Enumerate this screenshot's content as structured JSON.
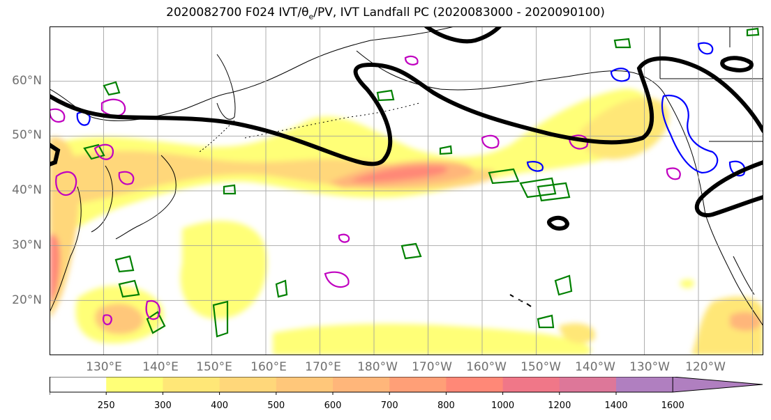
{
  "title": {
    "prefix": "2020082700 F024 IVT/",
    "theta": "θ",
    "sub": "e",
    "suffix": "/PV, IVT Landfall PC (2020083000 - 2020090100)"
  },
  "map": {
    "projection": "equirectangular",
    "lon_range_east": [
      120,
      252
    ],
    "lat_range": [
      10,
      70
    ],
    "lat_labels": [
      "60°N",
      "50°N",
      "40°N",
      "30°N",
      "20°N"
    ],
    "lon_labels": [
      "130°E",
      "140°E",
      "150°E",
      "160°E",
      "170°E",
      "180°W",
      "170°W",
      "160°W",
      "150°W",
      "140°W",
      "130°W",
      "120°W"
    ],
    "grid": true,
    "fill_field": "IVT (shaded)",
    "contour_colors": {
      "theta_e": "#008000",
      "pv_magenta": "#c000c0",
      "pv_blue": "#0000ff",
      "landfall_pc": "#000000"
    }
  },
  "colorbar": {
    "levels": [
      0,
      250,
      300,
      400,
      500,
      600,
      700,
      800,
      1000,
      1200,
      1400,
      1600
    ],
    "tick_labels": [
      "250",
      "300",
      "400",
      "500",
      "600",
      "700",
      "800",
      "1000",
      "1200",
      "1400",
      "1600"
    ],
    "colors": [
      "#ffffff",
      "#ffff77",
      "#ffe777",
      "#ffd77a",
      "#ffc77a",
      "#ffb67a",
      "#ff9f77",
      "#ff8877",
      "#f07788",
      "#dd7799",
      "#b07fc0"
    ],
    "extend": "max"
  }
}
